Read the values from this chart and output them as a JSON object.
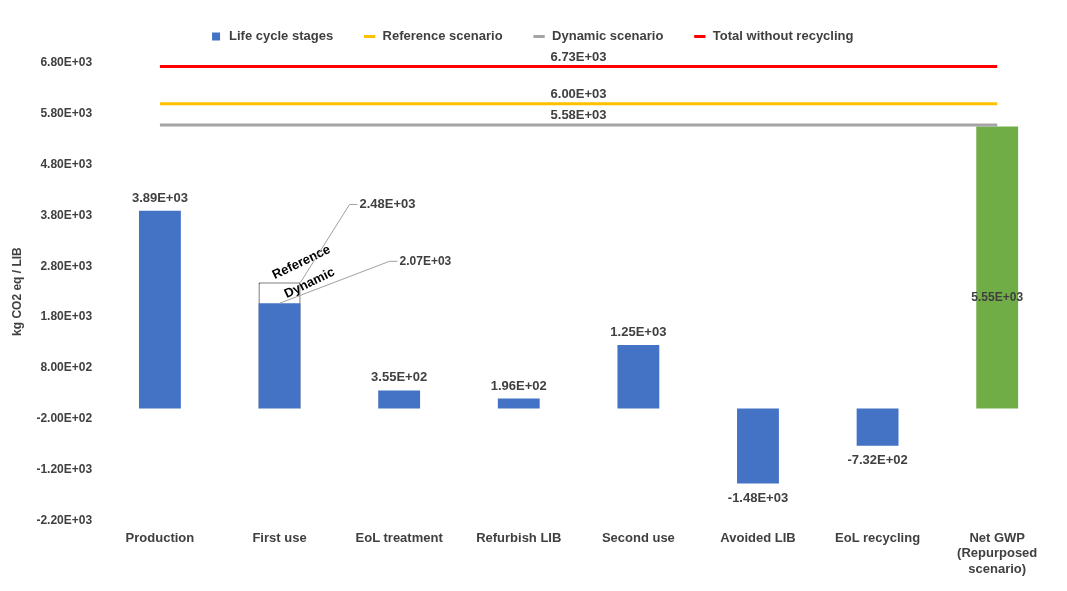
{
  "chart_data": {
    "type": "bar",
    "ylabel": "kg CO2 eq / LIB",
    "legend": "top",
    "grid": false,
    "marker": "none",
    "line_style": "solid",
    "categories": [
      "Production",
      "First use",
      "EoL treatment",
      "Refurbish LIB",
      "Second use",
      "Avoided LIB",
      "EoL recycling",
      "Net GWP (Repurposed scenario)"
    ],
    "ylim": [
      -2200,
      6800
    ],
    "yticks": [
      {
        "value": -2200,
        "label": "-2.20E+03"
      },
      {
        "value": -1200,
        "label": "-1.20E+03"
      },
      {
        "value": -200,
        "label": "-2.00E+02"
      },
      {
        "value": 800,
        "label": "8.00E+02"
      },
      {
        "value": 1800,
        "label": "1.80E+03"
      },
      {
        "value": 2800,
        "label": "2.80E+03"
      },
      {
        "value": 3800,
        "label": "3.80E+03"
      },
      {
        "value": 4800,
        "label": "4.80E+03"
      },
      {
        "value": 5800,
        "label": "5.80E+03"
      },
      {
        "value": 6800,
        "label": "6.80E+03"
      }
    ],
    "series": [
      {
        "name": "Life cycle stages",
        "color": "#4472c4",
        "colors": [
          "#4472c4",
          "#4472c4",
          "#4472c4",
          "#4472c4",
          "#4472c4",
          "#4472c4",
          "#4472c4",
          "#70ad47"
        ],
        "values": [
          3890,
          2070,
          355,
          196,
          1250,
          -1480,
          -732,
          5550
        ],
        "value_labels": [
          "3.89E+03",
          "2.07E+03",
          "3.55E+02",
          "1.96E+02",
          "1.25E+03",
          "-1.48E+03",
          "-7.32E+02",
          "5.55E+03"
        ]
      },
      {
        "color": "#ffffff",
        "values": [
          null,
          2480,
          null,
          null,
          null,
          null,
          null,
          null
        ],
        "value_labels": [
          null,
          "2.48E+03",
          null,
          null,
          null,
          null,
          null,
          null
        ]
      },
      {
        "name": "Reference scenario",
        "type": "line",
        "color": "#ffc000",
        "values": [
          6000,
          6000,
          6000,
          6000,
          6000,
          6000,
          6000,
          6000
        ]
      },
      {
        "name": "Dynamic scenario",
        "type": "line",
        "color": "#a5a5a5",
        "values": [
          5580,
          5580,
          5580,
          5580,
          5580,
          5580,
          5580,
          5580
        ]
      },
      {
        "name": "Total without recycling",
        "type": "line",
        "color": "#ff0000",
        "values": [
          6730,
          6730,
          6730,
          6730,
          6730,
          6730,
          6730,
          6730
        ]
      }
    ],
    "annotations": [
      {
        "text": "6.73E+03",
        "y": 6730
      },
      {
        "text": "6.00E+03",
        "y": 6000
      },
      {
        "text": "5.58E+03",
        "y": 5580
      },
      "Reference",
      "Dynamic"
    ]
  }
}
